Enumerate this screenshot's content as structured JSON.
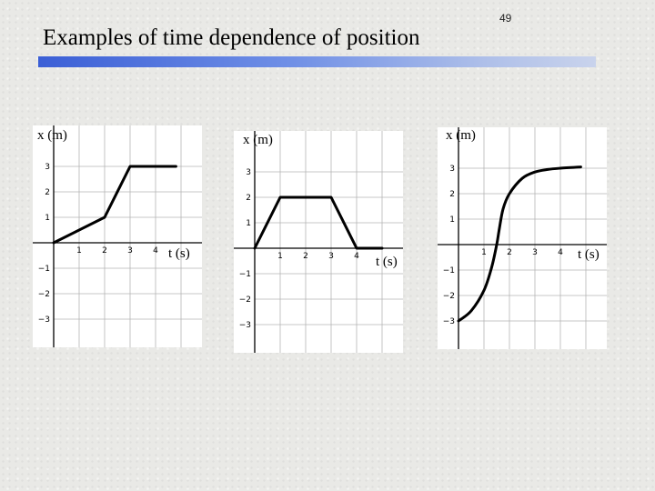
{
  "page_number": "49",
  "title": "Examples of time dependence of position",
  "chart_data": [
    {
      "type": "line",
      "xlabel": "t (s)",
      "ylabel": "x (m)",
      "x_ticks": [
        "1",
        "2",
        "3",
        "4"
      ],
      "y_ticks": [
        "3",
        "2",
        "1",
        "−1",
        "−2",
        "−3"
      ],
      "xlim": [
        0,
        5
      ],
      "ylim": [
        -3.5,
        3.5
      ],
      "grid": true,
      "x": [
        0,
        2,
        3,
        4.8
      ],
      "y": [
        0,
        1,
        3,
        3
      ]
    },
    {
      "type": "line",
      "xlabel": "t (s)",
      "ylabel": "x (m)",
      "x_ticks": [
        "1",
        "2",
        "3",
        "4"
      ],
      "y_ticks": [
        "3",
        "2",
        "1",
        "−1",
        "−2",
        "−3"
      ],
      "xlim": [
        0,
        5
      ],
      "ylim": [
        -3.5,
        3.5
      ],
      "grid": true,
      "x": [
        0,
        1,
        3,
        4,
        5
      ],
      "y": [
        0,
        2,
        2,
        0,
        0
      ]
    },
    {
      "type": "line",
      "xlabel": "t (s)",
      "ylabel": "x (m)",
      "x_ticks": [
        "1",
        "2",
        "3",
        "4"
      ],
      "y_ticks": [
        "3",
        "2",
        "1",
        "−1",
        "−2",
        "−3"
      ],
      "xlim": [
        0,
        5
      ],
      "ylim": [
        -3.5,
        3.5
      ],
      "grid": true,
      "x": [
        0,
        0.5,
        1,
        1.3,
        1.5,
        1.6,
        1.75,
        2,
        2.5,
        3,
        3.5,
        4,
        4.8
      ],
      "y": [
        -3,
        -2.6,
        -1.8,
        -0.9,
        0,
        0.6,
        1.4,
        2.0,
        2.6,
        2.85,
        2.95,
        3.0,
        3.05
      ]
    }
  ]
}
